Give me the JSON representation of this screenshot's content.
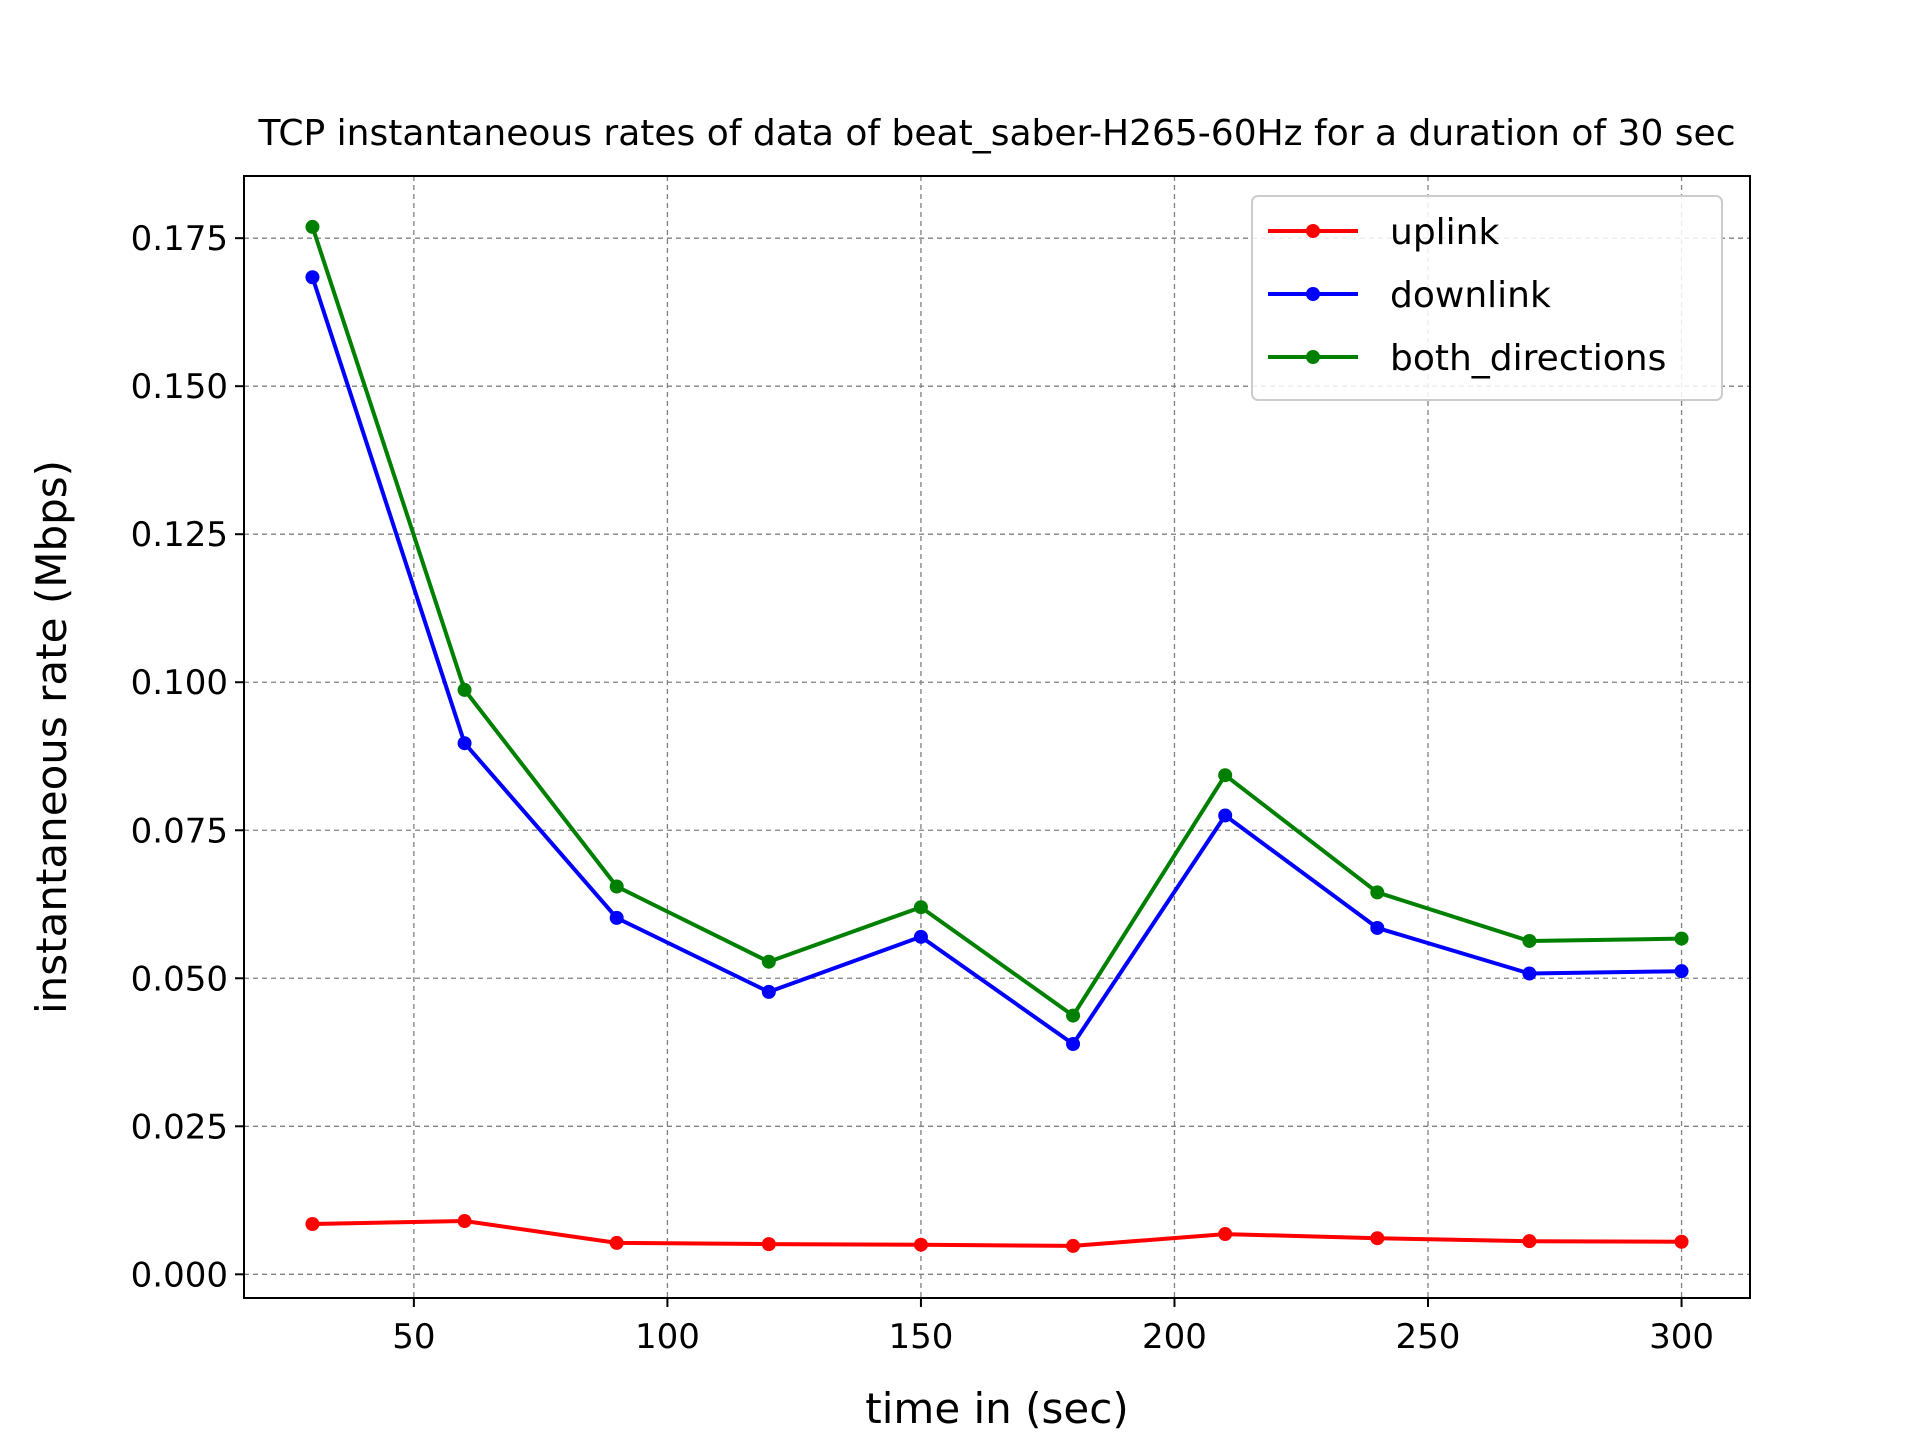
{
  "chart_data": {
    "type": "line",
    "title": "TCP instantaneous rates of data of beat_saber-H265-60Hz for a duration of 30 sec",
    "xlabel": "time in (sec)",
    "ylabel": "instantaneous rate (Mbps)",
    "xlim": [
      16.5,
      313.5
    ],
    "ylim": [
      -0.004,
      0.1855
    ],
    "xticks": [
      50,
      100,
      150,
      200,
      250,
      300
    ],
    "yticks": [
      0.0,
      0.025,
      0.05,
      0.075,
      0.1,
      0.125,
      0.15,
      0.175
    ],
    "ytick_labels": [
      "0.000",
      "0.025",
      "0.050",
      "0.075",
      "0.100",
      "0.125",
      "0.150",
      "0.175"
    ],
    "grid": true,
    "legend_position": "top-right",
    "x": [
      30,
      60,
      90,
      120,
      150,
      180,
      210,
      240,
      270,
      300
    ],
    "series": [
      {
        "name": "uplink",
        "color": "#ff0000",
        "values": [
          0.0085,
          0.009,
          0.0053,
          0.0051,
          0.005,
          0.0048,
          0.0068,
          0.0061,
          0.0056,
          0.0055
        ]
      },
      {
        "name": "downlink",
        "color": "#0000ff",
        "values": [
          0.1684,
          0.0897,
          0.0602,
          0.0477,
          0.057,
          0.0389,
          0.0775,
          0.0585,
          0.0508,
          0.0512
        ]
      },
      {
        "name": "both_directions",
        "color": "#008000",
        "values": [
          0.1769,
          0.0987,
          0.0655,
          0.0528,
          0.062,
          0.0437,
          0.0843,
          0.0645,
          0.0563,
          0.0567
        ]
      }
    ]
  }
}
